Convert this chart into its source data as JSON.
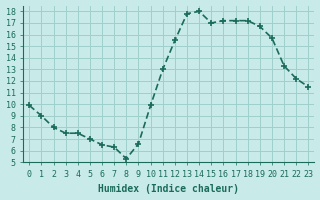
{
  "x": [
    0,
    1,
    2,
    3,
    4,
    5,
    6,
    7,
    8,
    9,
    10,
    11,
    12,
    13,
    14,
    15,
    16,
    17,
    18,
    19,
    20,
    21,
    22,
    23
  ],
  "y": [
    9.9,
    9.0,
    8.0,
    7.5,
    7.5,
    7.0,
    6.5,
    6.3,
    5.3,
    6.6,
    9.9,
    13.0,
    15.5,
    17.8,
    18.0,
    17.0,
    17.2,
    17.2,
    17.2,
    16.7,
    15.7,
    13.3,
    12.2,
    11.5
  ],
  "xlabel": "Humidex (Indice chaleur)",
  "ylabel": "",
  "xlim": [
    -0.5,
    23.5
  ],
  "ylim": [
    5,
    18.5
  ],
  "yticks": [
    5,
    6,
    7,
    8,
    9,
    10,
    11,
    12,
    13,
    14,
    15,
    16,
    17,
    18
  ],
  "xticks": [
    0,
    1,
    2,
    3,
    4,
    5,
    6,
    7,
    8,
    9,
    10,
    11,
    12,
    13,
    14,
    15,
    16,
    17,
    18,
    19,
    20,
    21,
    22,
    23
  ],
  "xtick_labels": [
    "0",
    "1",
    "2",
    "3",
    "4",
    "5",
    "6",
    "7",
    "8",
    "9",
    "10",
    "11",
    "12",
    "13",
    "14",
    "15",
    "16",
    "17",
    "18",
    "19",
    "20",
    "21",
    "22",
    "23"
  ],
  "line_color": "#1a6b5a",
  "marker": "+",
  "bg_color": "#c8eae8",
  "grid_color": "#a0d0cc",
  "title_color": "#1a6b5a",
  "axis_label_color": "#1a6b5a",
  "tick_color": "#1a6b5a",
  "font_family": "monospace"
}
